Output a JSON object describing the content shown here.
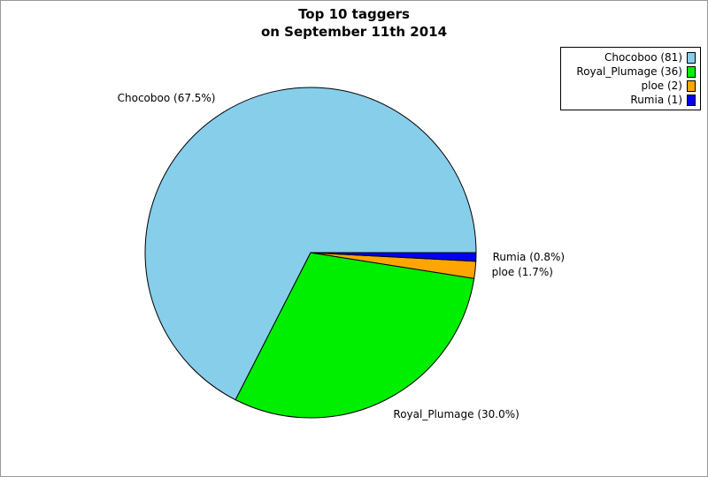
{
  "title": {
    "line1": "Top 10 taggers",
    "line2": "on September 11th 2014"
  },
  "chart_data": {
    "type": "pie",
    "title": "Top 10 taggers on September 11th 2014",
    "total": 120,
    "start_angle_deg": 0,
    "direction": "counterclockwise",
    "legend_position": "top-right",
    "outline_color": "#000000",
    "frame_border_color": "#999999",
    "slices": [
      {
        "name": "Chocoboo",
        "value": 81,
        "pct": 67.5,
        "label": "Chocoboo (67.5%)",
        "legend_label": "Chocoboo (81)",
        "color": "#87CEEB"
      },
      {
        "name": "Royal_Plumage",
        "value": 36,
        "pct": 30.0,
        "label": "Royal_Plumage (30.0%)",
        "legend_label": "Royal_Plumage (36)",
        "color": "#00EE00"
      },
      {
        "name": "ploe",
        "value": 2,
        "pct": 1.7,
        "label": "ploe (1.7%)",
        "legend_label": "ploe (2)",
        "color": "#FFA500"
      },
      {
        "name": "Rumia",
        "value": 1,
        "pct": 0.8,
        "label": "Rumia (0.8%)",
        "legend_label": "Rumia (1)",
        "color": "#0000F0"
      }
    ]
  }
}
